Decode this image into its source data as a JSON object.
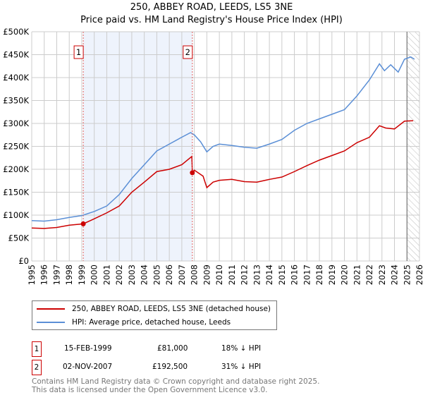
{
  "title": "250, ABBEY ROAD, LEEDS, LS5 3NE",
  "subtitle": "Price paid vs. HM Land Registry's House Price Index (HPI)",
  "chart_data": {
    "type": "line",
    "xlim": [
      1995,
      2026
    ],
    "ylim": [
      0,
      500000
    ],
    "x_ticks": [
      "1995",
      "1996",
      "1997",
      "1998",
      "1999",
      "2000",
      "2001",
      "2002",
      "2003",
      "2004",
      "2005",
      "2006",
      "2007",
      "2008",
      "2009",
      "2010",
      "2011",
      "2012",
      "2013",
      "2014",
      "2015",
      "2016",
      "2017",
      "2018",
      "2019",
      "2020",
      "2021",
      "2022",
      "2023",
      "2024",
      "2025",
      "2026"
    ],
    "y_ticks": [
      "£0",
      "£50K",
      "£100K",
      "£150K",
      "£200K",
      "£250K",
      "£300K",
      "£350K",
      "£400K",
      "£450K",
      "£500K"
    ],
    "series": [
      {
        "name": "250, ABBEY ROAD, LEEDS, LS5 3NE (detached house)",
        "color": "#cc0000",
        "x": [
          1995,
          1996,
          1997,
          1998,
          1999.12,
          2000,
          2001,
          2002,
          2003,
          2004,
          2005,
          2006,
          2007,
          2007.8,
          2007.84,
          2008,
          2008.7,
          2009,
          2009.5,
          2010,
          2011,
          2012,
          2013,
          2014,
          2015,
          2016,
          2017,
          2018,
          2019,
          2020,
          2021,
          2022,
          2022.8,
          2023.3,
          2024,
          2024.8,
          2025.5
        ],
        "y": [
          72000,
          71000,
          73000,
          78000,
          81000,
          92000,
          105000,
          120000,
          150000,
          172000,
          195000,
          200000,
          210000,
          228000,
          192500,
          198000,
          185000,
          160000,
          172000,
          176000,
          178000,
          173000,
          172000,
          178000,
          183000,
          195000,
          208000,
          220000,
          230000,
          240000,
          258000,
          270000,
          295000,
          290000,
          288000,
          305000,
          306000
        ]
      },
      {
        "name": "HPI: Average price, detached house, Leeds",
        "color": "#5b8fd6",
        "x": [
          1995,
          1996,
          1997,
          1998,
          1999,
          2000,
          2001,
          2002,
          2003,
          2004,
          2005,
          2006,
          2007,
          2007.7,
          2008,
          2008.5,
          2009,
          2009.5,
          2010,
          2011,
          2012,
          2013,
          2014,
          2015,
          2016,
          2017,
          2018,
          2019,
          2020,
          2021,
          2022,
          2022.8,
          2023.2,
          2023.7,
          2024.3,
          2024.8,
          2025.3,
          2025.6
        ],
        "y": [
          88000,
          87000,
          90000,
          95000,
          99000,
          108000,
          120000,
          145000,
          180000,
          210000,
          240000,
          255000,
          270000,
          280000,
          275000,
          260000,
          238000,
          250000,
          255000,
          252000,
          248000,
          246000,
          255000,
          265000,
          285000,
          300000,
          310000,
          320000,
          330000,
          360000,
          395000,
          430000,
          415000,
          428000,
          412000,
          440000,
          445000,
          440000
        ]
      }
    ],
    "sales": [
      {
        "label": "1",
        "x": 1999.12,
        "date": "15-FEB-1999",
        "price": "£81,000",
        "value": 81000,
        "hpi": "18% ↓ HPI"
      },
      {
        "label": "2",
        "x": 2007.84,
        "date": "02-NOV-2007",
        "price": "£192,500",
        "value": 192500,
        "hpi": "31% ↓ HPI"
      }
    ],
    "shaded_range": [
      1999.12,
      2007.84
    ],
    "hatched_from": 2025
  },
  "footer": [
    "Contains HM Land Registry data © Crown copyright and database right 2025.",
    "This data is licensed under the Open Government Licence v3.0."
  ]
}
